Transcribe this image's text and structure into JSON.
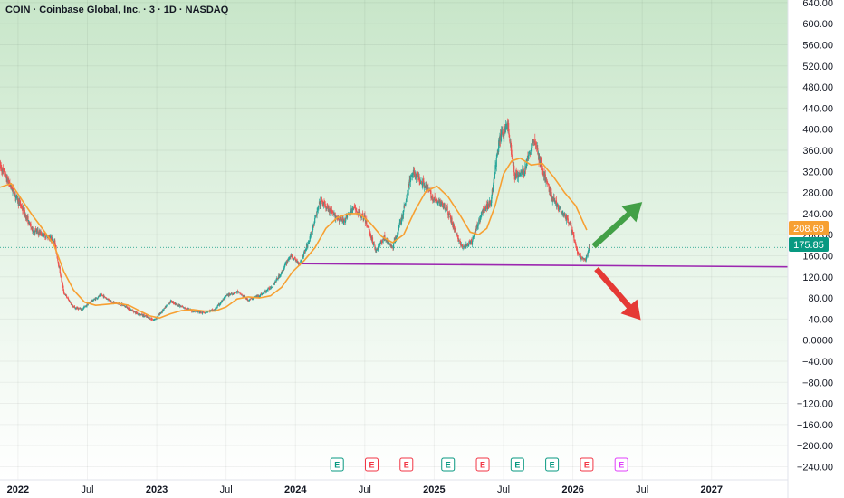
{
  "header": {
    "title": "COIN · Coinbase Global, Inc. · 3 · 1D · NASDAQ"
  },
  "colors": {
    "up": "#26a69a",
    "down": "#ef5350",
    "ma": "#f7a032",
    "support": "#9c27b0",
    "arrow_up": "#43a047",
    "arrow_down": "#e53935",
    "last_price_tag": "#089981",
    "ma_price_tag": "#f7a032",
    "earnings_past": "#089981",
    "earnings_reported": "#f23645",
    "earnings_upcoming": "#e040fb"
  },
  "price_tags": {
    "ma_value": "208.69",
    "last_price": "175.85"
  },
  "chart_data": {
    "type": "candlestick",
    "title": "COIN · Coinbase Global, Inc. · 3 · 1D · NASDAQ",
    "y_ticks": [
      "640.00",
      "600.00",
      "560.00",
      "520.00",
      "480.00",
      "440.00",
      "400.00",
      "360.00",
      "320.00",
      "280.00",
      "240.00",
      "200.00",
      "160.00",
      "120.00",
      "80.00",
      "40.00",
      "0.0000",
      "−40.00",
      "−80.00",
      "−120.00",
      "−160.00",
      "−200.00",
      "−240.00"
    ],
    "y_tick_values": [
      640,
      600,
      560,
      520,
      480,
      440,
      400,
      360,
      320,
      280,
      240,
      200,
      160,
      120,
      80,
      40,
      0,
      -40,
      -80,
      -120,
      -160,
      -200,
      -240
    ],
    "ylim": [
      -265,
      645
    ],
    "x_ticks": [
      {
        "label": "2022",
        "year": true,
        "t": 2022.0
      },
      {
        "label": "Jul",
        "year": false,
        "t": 2022.5
      },
      {
        "label": "2023",
        "year": true,
        "t": 2023.0
      },
      {
        "label": "Jul",
        "year": false,
        "t": 2023.5
      },
      {
        "label": "2024",
        "year": true,
        "t": 2024.0
      },
      {
        "label": "Jul",
        "year": false,
        "t": 2024.5
      },
      {
        "label": "2025",
        "year": true,
        "t": 2025.0
      },
      {
        "label": "Jul",
        "year": false,
        "t": 2025.5
      },
      {
        "label": "2026",
        "year": true,
        "t": 2026.0
      },
      {
        "label": "Jul",
        "year": false,
        "t": 2026.5
      },
      {
        "label": "2027",
        "year": true,
        "t": 2027.0
      }
    ],
    "xlim": [
      2021.87,
      2027.55
    ],
    "price_path": [
      [
        2021.87,
        330
      ],
      [
        2021.95,
        290
      ],
      [
        2022.03,
        250
      ],
      [
        2022.1,
        210
      ],
      [
        2022.18,
        200
      ],
      [
        2022.26,
        190
      ],
      [
        2022.33,
        90
      ],
      [
        2022.4,
        62
      ],
      [
        2022.46,
        58
      ],
      [
        2022.52,
        72
      ],
      [
        2022.6,
        86
      ],
      [
        2022.68,
        72
      ],
      [
        2022.76,
        66
      ],
      [
        2022.85,
        52
      ],
      [
        2022.92,
        45
      ],
      [
        2022.98,
        38
      ],
      [
        2023.04,
        55
      ],
      [
        2023.1,
        74
      ],
      [
        2023.17,
        64
      ],
      [
        2023.25,
        56
      ],
      [
        2023.33,
        52
      ],
      [
        2023.42,
        58
      ],
      [
        2023.5,
        84
      ],
      [
        2023.58,
        92
      ],
      [
        2023.66,
        76
      ],
      [
        2023.75,
        86
      ],
      [
        2023.83,
        102
      ],
      [
        2023.9,
        128
      ],
      [
        2023.96,
        160
      ],
      [
        2024.03,
        145
      ],
      [
        2024.1,
        190
      ],
      [
        2024.18,
        265
      ],
      [
        2024.26,
        240
      ],
      [
        2024.34,
        225
      ],
      [
        2024.42,
        250
      ],
      [
        2024.5,
        230
      ],
      [
        2024.58,
        170
      ],
      [
        2024.64,
        195
      ],
      [
        2024.7,
        175
      ],
      [
        2024.77,
        235
      ],
      [
        2024.84,
        320
      ],
      [
        2024.92,
        300
      ],
      [
        2025.0,
        265
      ],
      [
        2025.08,
        255
      ],
      [
        2025.14,
        215
      ],
      [
        2025.2,
        175
      ],
      [
        2025.27,
        185
      ],
      [
        2025.34,
        240
      ],
      [
        2025.41,
        265
      ],
      [
        2025.47,
        380
      ],
      [
        2025.53,
        410
      ],
      [
        2025.58,
        310
      ],
      [
        2025.65,
        320
      ],
      [
        2025.72,
        385
      ],
      [
        2025.78,
        320
      ],
      [
        2025.85,
        270
      ],
      [
        2025.92,
        245
      ],
      [
        2025.98,
        220
      ],
      [
        2026.04,
        160
      ],
      [
        2026.09,
        150
      ],
      [
        2026.12,
        176
      ]
    ],
    "series": [
      {
        "name": "",
        "type": "moving_average",
        "points": [
          [
            2021.87,
            290
          ],
          [
            2021.95,
            297
          ],
          [
            2022.03,
            265
          ],
          [
            2022.1,
            238
          ],
          [
            2022.18,
            210
          ],
          [
            2022.26,
            180
          ],
          [
            2022.33,
            130
          ],
          [
            2022.4,
            95
          ],
          [
            2022.48,
            72
          ],
          [
            2022.56,
            66
          ],
          [
            2022.64,
            68
          ],
          [
            2022.72,
            70
          ],
          [
            2022.8,
            66
          ],
          [
            2022.88,
            55
          ],
          [
            2022.95,
            46
          ],
          [
            2023.02,
            42
          ],
          [
            2023.1,
            50
          ],
          [
            2023.18,
            56
          ],
          [
            2023.26,
            58
          ],
          [
            2023.34,
            55
          ],
          [
            2023.42,
            55
          ],
          [
            2023.5,
            63
          ],
          [
            2023.58,
            78
          ],
          [
            2023.66,
            82
          ],
          [
            2023.74,
            80
          ],
          [
            2023.82,
            84
          ],
          [
            2023.9,
            100
          ],
          [
            2023.98,
            130
          ],
          [
            2024.06,
            150
          ],
          [
            2024.14,
            175
          ],
          [
            2024.22,
            212
          ],
          [
            2024.3,
            232
          ],
          [
            2024.38,
            240
          ],
          [
            2024.46,
            240
          ],
          [
            2024.54,
            222
          ],
          [
            2024.62,
            197
          ],
          [
            2024.7,
            185
          ],
          [
            2024.78,
            200
          ],
          [
            2024.86,
            245
          ],
          [
            2024.94,
            282
          ],
          [
            2025.02,
            292
          ],
          [
            2025.1,
            272
          ],
          [
            2025.18,
            240
          ],
          [
            2025.26,
            205
          ],
          [
            2025.32,
            200
          ],
          [
            2025.38,
            212
          ],
          [
            2025.44,
            255
          ],
          [
            2025.5,
            315
          ],
          [
            2025.56,
            340
          ],
          [
            2025.62,
            345
          ],
          [
            2025.7,
            332
          ],
          [
            2025.78,
            335
          ],
          [
            2025.86,
            310
          ],
          [
            2025.94,
            280
          ],
          [
            2026.02,
            255
          ],
          [
            2026.1,
            208.69
          ]
        ]
      }
    ],
    "support_line": {
      "from": [
        2024.03,
        145
      ],
      "to": [
        2027.55,
        139
      ]
    },
    "last_price": 175.85,
    "ma_value": 208.69,
    "projection_up": {
      "from": [
        2026.15,
        178
      ],
      "to": [
        2026.5,
        262
      ]
    },
    "projection_down": {
      "from": [
        2026.17,
        135
      ],
      "to": [
        2026.49,
        38
      ]
    },
    "earnings_events": [
      {
        "t": 2024.3,
        "label": "E",
        "kind": "past"
      },
      {
        "t": 2024.55,
        "label": "E",
        "kind": "reported"
      },
      {
        "t": 2024.8,
        "label": "E",
        "kind": "reported"
      },
      {
        "t": 2025.1,
        "label": "E",
        "kind": "past"
      },
      {
        "t": 2025.35,
        "label": "E",
        "kind": "reported"
      },
      {
        "t": 2025.6,
        "label": "E",
        "kind": "past"
      },
      {
        "t": 2025.85,
        "label": "E",
        "kind": "past"
      },
      {
        "t": 2026.1,
        "label": "E",
        "kind": "reported"
      },
      {
        "t": 2026.35,
        "label": "E",
        "kind": "upcoming"
      }
    ]
  }
}
